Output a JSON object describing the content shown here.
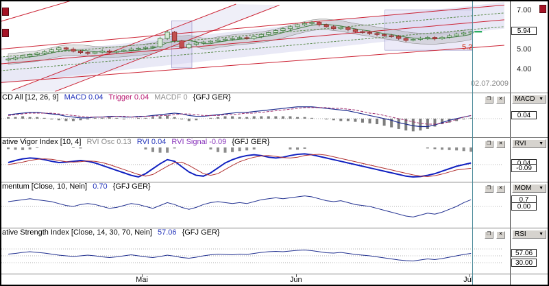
{
  "colors": {
    "accent_blue": "#2233bb",
    "accent_crimson": "#bb2277",
    "accent_violet": "#8833bb",
    "trendline_red": "#cc2233",
    "ma_green": "#3f7d3f",
    "candle_up": "#d8ead8",
    "candle_down": "#c24f4f",
    "histogram_gray": "#7d7d7d",
    "crosshair_teal": "#4a8a99",
    "marker_red": "#a51325"
  },
  "icons": {
    "restore": "❐",
    "close": "✕",
    "dropdown": "▼"
  },
  "panels": {
    "macd": {
      "title": "CD All [12, 26, 9]",
      "s1": "MACD 0.04",
      "s2": "Trigger 0.04",
      "s3": "MACDF 0",
      "suffix": "{GFJ GER}"
    },
    "rvi": {
      "title": "ative Vigor Index [10, 4]",
      "s1": "RVI Osc 0.13",
      "s2": "RVI 0.04",
      "s3": "RVI Signal -0.09",
      "suffix": "{GFJ GER}"
    },
    "mom": {
      "title": "mentum [Close, 10, Nein]",
      "s1": "0.70",
      "suffix": "{GFJ GER}"
    },
    "rsi": {
      "title": "ative Strength Index [Close, 14, 30, 70, Nein]",
      "s1": "57.06",
      "suffix": "{GFJ GER}"
    }
  },
  "sidebar": {
    "price": {
      "ticks": [
        {
          "text": "7.00",
          "p": 7.0
        },
        {
          "text": "5.00",
          "p": 5.0
        },
        {
          "text": "4.00",
          "p": 4.0
        }
      ],
      "current": {
        "text": "5.94",
        "p": 5.94
      }
    },
    "macd": {
      "button": "MACD",
      "tags": [
        {
          "text": "0.04",
          "v": 0.04
        }
      ]
    },
    "rvi": {
      "button": "RVI",
      "tags": [
        {
          "text": "0.04",
          "v": 0.04
        },
        {
          "text": "-0.09",
          "v": -0.09
        }
      ]
    },
    "mom": {
      "button": "MOM",
      "tags": [
        {
          "text": "0.7",
          "v": 0.7
        },
        {
          "text": "0.00",
          "v": 0.0
        }
      ]
    },
    "rsi": {
      "button": "RSI",
      "tags": [
        {
          "text": "57.06",
          "v": 57.06
        },
        {
          "text": "30.00",
          "v": 30.0
        }
      ]
    }
  },
  "time_axis": {
    "labels": [
      {
        "text": "Mai",
        "i": 18.5
      },
      {
        "text": "Jun",
        "i": 39.8
      },
      {
        "text": "Jul",
        "i": 63.8
      }
    ]
  },
  "chart_data": [
    {
      "id": "price",
      "type": "candlestick",
      "title": "",
      "ylim": [
        2.9,
        7.5
      ],
      "yticks": [
        4.0,
        5.0,
        7.0
      ],
      "current": 5.94,
      "first_open": 4.5,
      "closes": [
        4.55,
        4.62,
        4.7,
        4.78,
        4.86,
        4.92,
        5.02,
        5.12,
        5.05,
        4.95,
        4.88,
        4.84,
        4.9,
        4.96,
        4.9,
        4.95,
        5.0,
        5.06,
        5.1,
        5.14,
        5.18,
        5.6,
        5.92,
        5.48,
        5.12,
        5.3,
        5.36,
        5.42,
        5.46,
        5.52,
        5.56,
        5.6,
        5.64,
        5.6,
        5.7,
        5.8,
        5.9,
        6.0,
        6.1,
        6.2,
        6.3,
        6.36,
        6.42,
        6.3,
        6.2,
        6.1,
        6.16,
        6.05,
        5.95,
        5.9,
        5.85,
        5.8,
        5.74,
        5.7,
        5.6,
        5.5,
        5.55,
        5.6,
        5.65,
        5.58,
        5.66,
        5.74,
        5.82,
        5.88,
        5.94
      ],
      "trendlines": [
        {
          "from": [
            -1.2,
            5.05
          ],
          "to": [
            68.6,
            7.3
          ],
          "color": "#cc2233"
        },
        {
          "from": [
            -1.2,
            4.3
          ],
          "to": [
            68.6,
            6.55
          ],
          "color": "#cc2233"
        },
        {
          "from": [
            -1.2,
            3.35
          ],
          "to": [
            68.6,
            5.25
          ],
          "color": "#cc2233"
        },
        {
          "from": [
            0.5,
            2.95
          ],
          "to": [
            31.5,
            7.35
          ],
          "color": "#cc2233"
        },
        {
          "from": [
            6.5,
            2.9
          ],
          "to": [
            37.5,
            7.3
          ],
          "color": "#cc2233"
        },
        {
          "from": [
            -1.2,
            6.45
          ],
          "to": [
            8.5,
            7.5
          ],
          "color": "#cc2233"
        },
        {
          "from": [
            -1.2,
            4.65
          ],
          "to": [
            68.6,
            6.9
          ],
          "color": "#5a8a4a",
          "dash": "3,2"
        },
        {
          "from": [
            -1.2,
            3.95
          ],
          "to": [
            68.6,
            6.2
          ],
          "color": "#5a8a4a",
          "dash": "3,2"
        }
      ],
      "bands": [
        [
          [
            -1.2,
            3.3
          ],
          [
            68.6,
            6.1
          ],
          [
            68.6,
            7.45
          ],
          [
            -1.2,
            4.65
          ]
        ],
        [
          [
            0.5,
            2.95
          ],
          [
            31.5,
            7.35
          ],
          [
            37.5,
            7.3
          ],
          [
            6.5,
            2.9
          ]
        ]
      ],
      "highlights": [
        {
          "i0": 22.6,
          "i1": 25.4,
          "p0": 4.1,
          "p1": 6.5
        },
        {
          "i0": 52.1,
          "i1": 64.2,
          "p0": 5.0,
          "p1": 7.05
        }
      ],
      "annotations": [
        {
          "text": "5.2"
        },
        {
          "text": "02.07.2009"
        }
      ]
    },
    {
      "id": "macd",
      "type": "macd",
      "params": [
        12,
        26,
        9
      ],
      "current": {
        "macd": 0.04,
        "trigger": 0.04,
        "macdf": 0
      },
      "levels": [
        0
      ],
      "hist": [
        0.02,
        0.02,
        0.03,
        0.02,
        0.02,
        0.01,
        -0.01,
        -0.02,
        -0.03,
        -0.03,
        -0.02,
        -0.01,
        0.01,
        0.01,
        0.02,
        0.01,
        -0.01,
        0.0,
        0.01,
        0.01,
        0.02,
        0.03,
        0.04,
        0.02,
        -0.01,
        -0.03,
        -0.02,
        0.0,
        0.01,
        0.02,
        0.03,
        0.03,
        0.02,
        0.02,
        0.03,
        0.03,
        0.03,
        0.03,
        0.03,
        0.03,
        0.02,
        0.02,
        0.01,
        0.0,
        -0.01,
        -0.02,
        -0.03,
        -0.03,
        -0.04,
        -0.05,
        -0.06,
        -0.07,
        -0.09,
        -0.11,
        -0.13,
        -0.15,
        -0.16,
        -0.15,
        -0.13,
        -0.1,
        -0.07,
        -0.05,
        -0.03,
        -0.01,
        0.01
      ],
      "series": [
        {
          "name": "MACD",
          "color": "#1f2e8f",
          "w": 1.2,
          "values": [
            0.05,
            0.06,
            0.07,
            0.08,
            0.08,
            0.07,
            0.06,
            0.05,
            0.03,
            0.02,
            0.01,
            0.01,
            0.02,
            0.02,
            0.03,
            0.03,
            0.02,
            0.02,
            0.03,
            0.03,
            0.04,
            0.05,
            0.06,
            0.07,
            0.06,
            0.04,
            0.03,
            0.03,
            0.04,
            0.05,
            0.06,
            0.07,
            0.08,
            0.08,
            0.09,
            0.1,
            0.11,
            0.12,
            0.13,
            0.14,
            0.15,
            0.15,
            0.15,
            0.14,
            0.13,
            0.12,
            0.11,
            0.1,
            0.08,
            0.06,
            0.04,
            0.02,
            0.0,
            -0.02,
            -0.05,
            -0.07,
            -0.09,
            -0.1,
            -0.1,
            -0.08,
            -0.05,
            -0.02,
            0.0,
            0.02,
            0.04
          ]
        },
        {
          "name": "Trigger",
          "color": "#a03070",
          "w": 1,
          "dash": "4,2",
          "values": [
            0.04,
            0.05,
            0.06,
            0.07,
            0.07,
            0.07,
            0.07,
            0.06,
            0.05,
            0.04,
            0.03,
            0.02,
            0.02,
            0.02,
            0.02,
            0.03,
            0.03,
            0.02,
            0.02,
            0.03,
            0.03,
            0.04,
            0.04,
            0.05,
            0.06,
            0.06,
            0.05,
            0.04,
            0.04,
            0.04,
            0.05,
            0.05,
            0.06,
            0.07,
            0.07,
            0.08,
            0.09,
            0.1,
            0.11,
            0.12,
            0.13,
            0.14,
            0.14,
            0.14,
            0.14,
            0.13,
            0.13,
            0.12,
            0.11,
            0.09,
            0.07,
            0.06,
            0.04,
            0.02,
            0.0,
            -0.02,
            -0.04,
            -0.06,
            -0.07,
            -0.07,
            -0.06,
            -0.04,
            -0.01,
            0.02,
            0.04
          ]
        }
      ]
    },
    {
      "id": "rvi",
      "type": "line",
      "params": [
        10,
        4
      ],
      "current": {
        "rvi_osc": 0.13,
        "rvi": 0.04,
        "rvi_signal": -0.09
      },
      "levels": [
        0
      ],
      "osc_top": true,
      "series": [
        {
          "name": "RVI",
          "color": "#1020c0",
          "w": 2,
          "values": [
            0.05,
            0.1,
            0.14,
            0.16,
            0.15,
            0.12,
            0.08,
            0.05,
            0.06,
            0.08,
            0.1,
            0.08,
            0.04,
            -0.02,
            -0.08,
            -0.14,
            -0.2,
            -0.26,
            -0.3,
            -0.22,
            -0.1,
            0.02,
            0.12,
            0.08,
            -0.05,
            -0.18,
            -0.26,
            -0.28,
            -0.2,
            -0.08,
            0.04,
            0.12,
            0.18,
            0.22,
            0.24,
            0.22,
            0.18,
            0.16,
            0.18,
            0.22,
            0.25,
            0.26,
            0.24,
            0.2,
            0.16,
            0.12,
            0.08,
            0.04,
            0.0,
            -0.04,
            -0.08,
            -0.12,
            -0.16,
            -0.2,
            -0.24,
            -0.28,
            -0.3,
            -0.29,
            -0.26,
            -0.22,
            -0.16,
            -0.1,
            -0.04,
            0.0,
            0.04
          ]
        },
        {
          "name": "RVI Signal",
          "color": "#b03030",
          "w": 1,
          "values": [
            0.0,
            0.03,
            0.06,
            0.1,
            0.13,
            0.14,
            0.13,
            0.1,
            0.07,
            0.06,
            0.07,
            0.09,
            0.08,
            0.05,
            0.0,
            -0.06,
            -0.12,
            -0.18,
            -0.24,
            -0.28,
            -0.24,
            -0.14,
            -0.04,
            0.05,
            0.06,
            -0.02,
            -0.12,
            -0.22,
            -0.26,
            -0.22,
            -0.12,
            -0.02,
            0.07,
            0.13,
            0.18,
            0.21,
            0.22,
            0.2,
            0.17,
            0.16,
            0.18,
            0.22,
            0.24,
            0.25,
            0.23,
            0.19,
            0.15,
            0.11,
            0.07,
            0.03,
            -0.01,
            -0.05,
            -0.09,
            -0.13,
            -0.17,
            -0.21,
            -0.25,
            -0.28,
            -0.29,
            -0.27,
            -0.23,
            -0.18,
            -0.13,
            -0.11,
            -0.09
          ]
        }
      ]
    },
    {
      "id": "mom",
      "type": "line",
      "params": "Close, 10, Nein",
      "current": 0.7,
      "levels": [
        0
      ],
      "series": [
        {
          "name": "Momentum",
          "color": "#1f2e8f",
          "w": 1,
          "values": [
            0.5,
            0.6,
            0.7,
            0.8,
            0.7,
            0.6,
            0.5,
            0.3,
            0.1,
            0.0,
            0.2,
            0.3,
            0.2,
            0.0,
            -0.2,
            -0.1,
            0.1,
            0.3,
            0.2,
            0.0,
            -0.2,
            0.1,
            0.4,
            0.2,
            -0.1,
            -0.3,
            -0.1,
            0.2,
            0.4,
            0.5,
            0.4,
            0.3,
            0.4,
            0.3,
            0.5,
            0.7,
            0.8,
            0.9,
            0.8,
            0.9,
            1.0,
            1.1,
            1.0,
            0.8,
            0.6,
            0.5,
            0.6,
            0.4,
            0.2,
            0.1,
            0.0,
            -0.2,
            -0.4,
            -0.6,
            -0.8,
            -1.0,
            -1.1,
            -0.9,
            -0.7,
            -0.8,
            -0.6,
            -0.3,
            0.0,
            0.4,
            0.7
          ]
        }
      ]
    },
    {
      "id": "rsi",
      "type": "line",
      "params": "Close, 14, 30, 70, Nein",
      "current": 57.06,
      "levels": [
        30,
        50,
        70
      ],
      "series": [
        {
          "name": "RSI",
          "color": "#1f2e8f",
          "w": 1,
          "values": [
            55,
            57,
            60,
            62,
            60,
            58,
            55,
            52,
            50,
            48,
            50,
            52,
            50,
            47,
            45,
            47,
            50,
            53,
            50,
            47,
            45,
            48,
            52,
            49,
            45,
            43,
            46,
            50,
            53,
            55,
            54,
            53,
            55,
            54,
            57,
            60,
            62,
            63,
            62,
            64,
            66,
            67,
            65,
            62,
            59,
            58,
            60,
            57,
            54,
            52,
            50,
            47,
            44,
            41,
            38,
            36,
            35,
            38,
            41,
            39,
            42,
            46,
            50,
            54,
            57.06
          ]
        }
      ]
    }
  ]
}
